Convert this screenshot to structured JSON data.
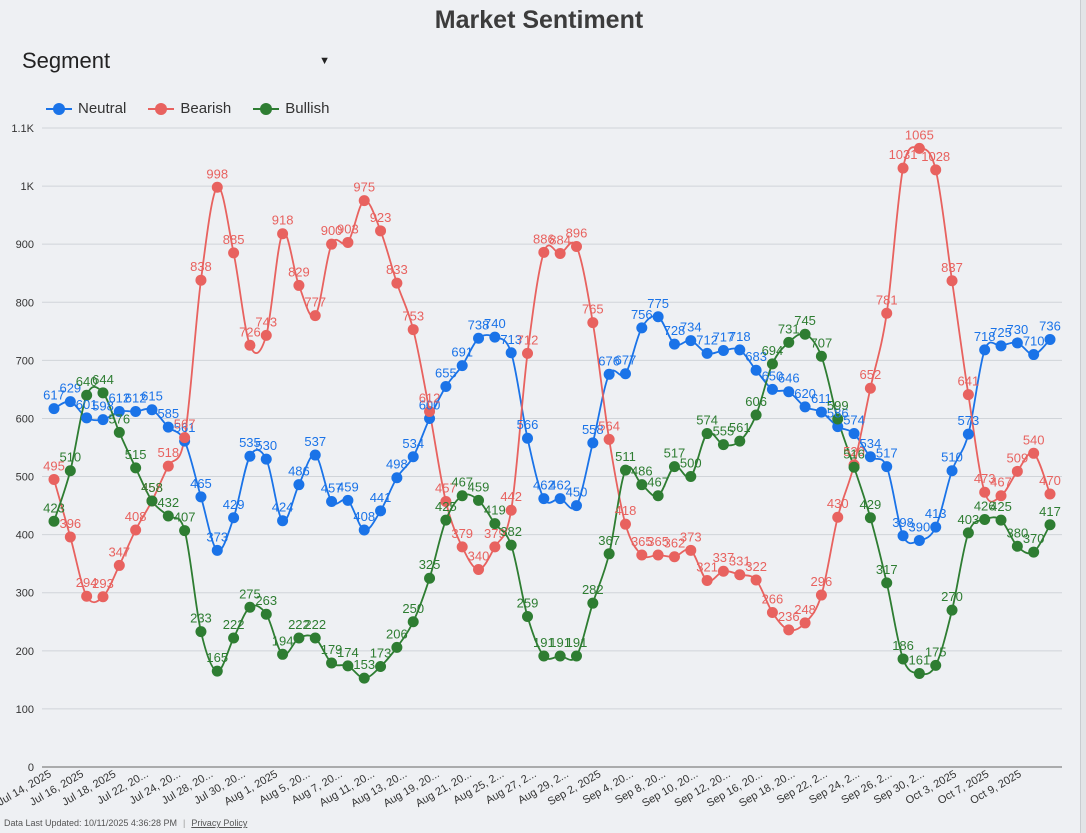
{
  "title": "Market Sentiment",
  "segment": {
    "label": "Segment"
  },
  "footer": {
    "updated": "Data Last Updated: 10/11/2025 4:36:28 PM",
    "separator": "|",
    "privacy": "Privacy Policy"
  },
  "colors": {
    "neutral": "#1a73e8",
    "bearish": "#e8625f",
    "bullish": "#2e7d32",
    "grid": "#d0d4d9",
    "axis": "#333333"
  },
  "chart_data": {
    "type": "line",
    "title": "Market Sentiment",
    "legend_position": "top-left",
    "grid": true,
    "ylim": [
      0,
      1100
    ],
    "y_ticks": [
      0,
      100,
      200,
      300,
      400,
      500,
      600,
      700,
      800,
      900,
      1000,
      1100
    ],
    "y_tick_labels": [
      "0",
      "100",
      "200",
      "300",
      "400",
      "500",
      "600",
      "700",
      "800",
      "900",
      "1K",
      "1.1K"
    ],
    "x_tick_labels": [
      "Jul 14, 2025",
      "Jul 16, 2025",
      "Jul 18, 2025",
      "Jul 22, 20...",
      "Jul 24, 20...",
      "Jul 28, 20...",
      "Jul 30, 20...",
      "Aug 1, 2025",
      "Aug 5, 20...",
      "Aug 7, 20...",
      "Aug 11, 20...",
      "Aug 13, 20...",
      "Aug 19, 20...",
      "Aug 21, 20...",
      "Aug 25, 2...",
      "Aug 27, 2...",
      "Aug 29, 2...",
      "Sep 2, 2025",
      "Sep 4, 20...",
      "Sep 8, 20...",
      "Sep 10, 20...",
      "Sep 12, 20...",
      "Sep 16, 20...",
      "Sep 18, 20...",
      "Sep 22, 2...",
      "Sep 24, 2...",
      "Sep 26, 2...",
      "Sep 30, 2...",
      "Oct 3, 2025",
      "Oct 7, 2025",
      "Oct 9, 2025"
    ],
    "series": [
      {
        "name": "Neutral",
        "values": [
          617,
          629,
          601,
          598,
          612,
          612,
          615,
          585,
          561,
          465,
          373,
          429,
          535,
          530,
          424,
          486,
          537,
          457,
          459,
          408,
          441,
          498,
          534,
          600,
          655,
          691,
          738,
          740,
          713,
          566,
          462,
          462,
          450,
          558,
          676,
          677,
          756,
          775,
          728,
          734,
          712,
          717,
          718,
          683,
          650,
          646,
          620,
          611,
          586,
          574,
          534,
          517,
          398,
          390,
          413,
          510,
          573,
          718,
          725,
          730,
          710,
          736
        ]
      },
      {
        "name": "Bearish",
        "values": [
          495,
          396,
          294,
          293,
          347,
          408,
          458,
          518,
          567,
          838,
          998,
          885,
          726,
          743,
          918,
          829,
          777,
          900,
          903,
          975,
          923,
          833,
          753,
          612,
          457,
          379,
          340,
          379,
          442,
          712,
          886,
          884,
          896,
          765,
          564,
          418,
          365,
          365,
          362,
          373,
          321,
          337,
          331,
          322,
          266,
          236,
          248,
          296,
          430,
          520,
          652,
          781,
          1031,
          1065,
          1028,
          837,
          641,
          473,
          467,
          509,
          540,
          470
        ]
      },
      {
        "name": "Bullish",
        "values": [
          423,
          510,
          640,
          644,
          576,
          515,
          458,
          432,
          407,
          233,
          165,
          222,
          275,
          263,
          194,
          222,
          222,
          179,
          174,
          153,
          173,
          206,
          250,
          325,
          425,
          467,
          459,
          419,
          382,
          259,
          191,
          191,
          191,
          282,
          367,
          511,
          486,
          467,
          517,
          500,
          574,
          555,
          561,
          606,
          694,
          731,
          745,
          707,
          599,
          516,
          429,
          317,
          186,
          161,
          175,
          270,
          403,
          426,
          425,
          380,
          370,
          417
        ]
      }
    ]
  }
}
